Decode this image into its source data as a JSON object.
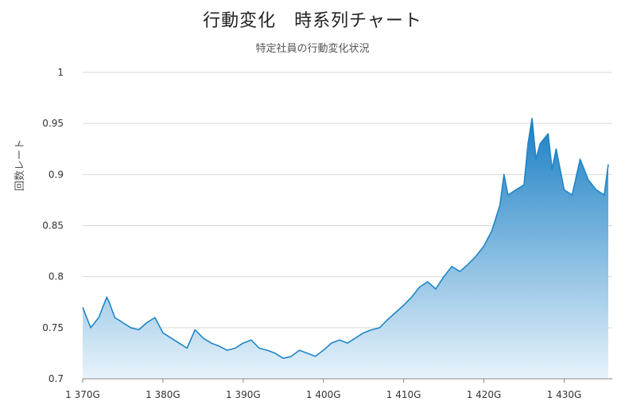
{
  "chart_data": {
    "type": "area",
    "title": "行動変化　時系列チャート",
    "subtitle": "特定社員の行動変化状況",
    "ylabel": "回数レート",
    "xlabel": "",
    "xlim": [
      1370,
      1436
    ],
    "ylim": [
      0.7,
      1.0
    ],
    "x_ticks": [
      1370,
      1380,
      1390,
      1400,
      1410,
      1420,
      1430
    ],
    "x_tick_labels": [
      "1 370G",
      "1 380G",
      "1 390G",
      "1 400G",
      "1 410G",
      "1 420G",
      "1 430G"
    ],
    "y_ticks": [
      0.7,
      0.75,
      0.8,
      0.85,
      0.9,
      0.95,
      1
    ],
    "y_tick_labels": [
      "0.7",
      "0.75",
      "0.8",
      "0.85",
      "0.9",
      "0.95",
      "1"
    ],
    "grid": true,
    "legend": "none",
    "colors": {
      "line": "#1f86c8",
      "fill_top": "#1a7fc4",
      "fill_bottom": "#e8f3fb",
      "grid": "#d9d9d9"
    },
    "series": [
      {
        "x": [
          1370,
          1370.5,
          1371,
          1372,
          1372.5,
          1373,
          1373.3,
          1374,
          1375,
          1376,
          1377,
          1378,
          1379,
          1380,
          1381,
          1382,
          1383,
          1384,
          1385,
          1386,
          1387,
          1388,
          1389,
          1390,
          1391,
          1392,
          1393,
          1394,
          1395,
          1396,
          1397,
          1398,
          1399,
          1400,
          1401,
          1402,
          1403,
          1404,
          1405,
          1406,
          1407,
          1408,
          1409,
          1410,
          1411,
          1412,
          1413,
          1414,
          1415,
          1416,
          1417,
          1418,
          1419,
          1420,
          1421,
          1422,
          1422.5,
          1423,
          1424,
          1425,
          1425.5,
          1426,
          1426.5,
          1427,
          1428,
          1428.5,
          1429,
          1430,
          1431,
          1432,
          1433,
          1434,
          1435,
          1435.5
        ],
        "y": [
          0.77,
          0.76,
          0.75,
          0.76,
          0.77,
          0.78,
          0.775,
          0.76,
          0.755,
          0.75,
          0.748,
          0.755,
          0.76,
          0.745,
          0.74,
          0.735,
          0.73,
          0.748,
          0.74,
          0.735,
          0.732,
          0.728,
          0.73,
          0.735,
          0.738,
          0.73,
          0.728,
          0.725,
          0.72,
          0.722,
          0.728,
          0.725,
          0.722,
          0.728,
          0.735,
          0.738,
          0.735,
          0.74,
          0.745,
          0.748,
          0.75,
          0.758,
          0.765,
          0.772,
          0.78,
          0.79,
          0.795,
          0.788,
          0.8,
          0.81,
          0.805,
          0.812,
          0.82,
          0.83,
          0.845,
          0.87,
          0.9,
          0.88,
          0.885,
          0.89,
          0.93,
          0.955,
          0.915,
          0.93,
          0.94,
          0.905,
          0.925,
          0.885,
          0.88,
          0.915,
          0.895,
          0.885,
          0.88,
          0.91
        ]
      }
    ]
  }
}
